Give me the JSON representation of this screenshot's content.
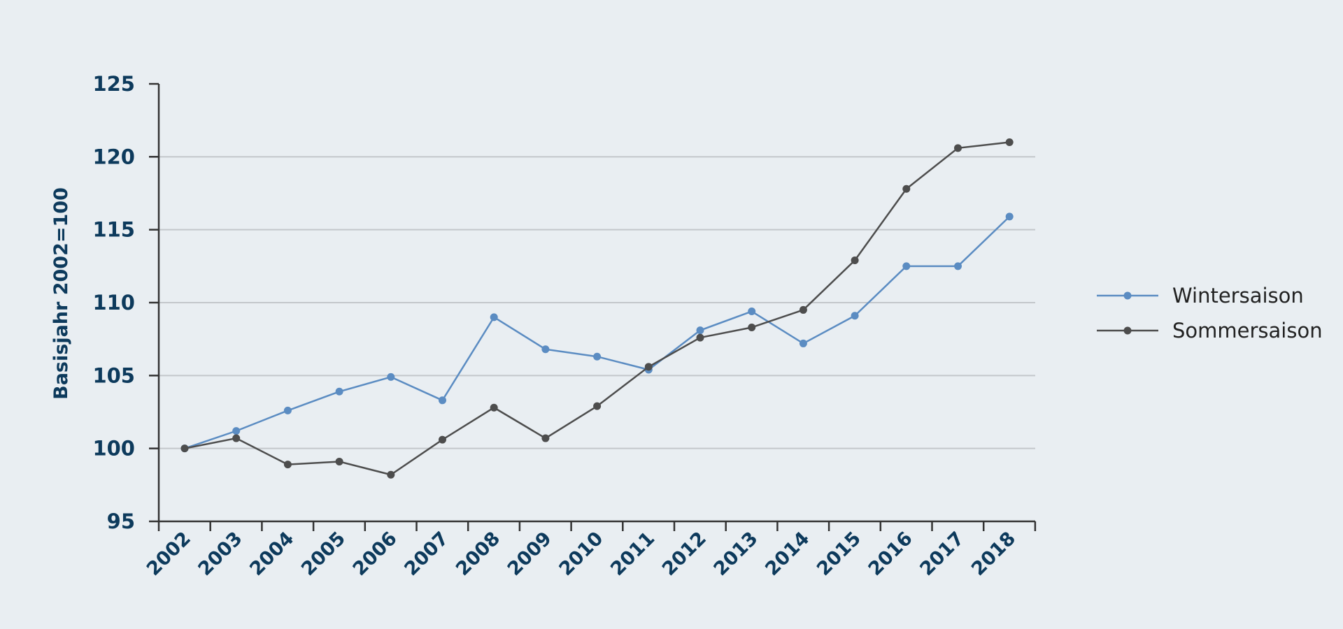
{
  "chart_data": {
    "type": "line",
    "title": "",
    "xlabel": "",
    "ylabel": "Basisjahr 2002=100",
    "x": [
      "2002",
      "2003",
      "2004",
      "2005",
      "2006",
      "2007",
      "2008",
      "2009",
      "2010",
      "2011",
      "2012",
      "2013",
      "2014",
      "2015",
      "2016",
      "2017",
      "2018"
    ],
    "ylim": [
      95,
      125
    ],
    "yticks": [
      "95",
      "100",
      "105",
      "110",
      "115",
      "120",
      "125"
    ],
    "grid": true,
    "legend_position": "right",
    "series": [
      {
        "name": "Wintersaison",
        "color": "#5b8cc2",
        "values": [
          100,
          101.2,
          102.6,
          103.9,
          104.9,
          103.3,
          109.0,
          106.8,
          106.3,
          105.4,
          108.1,
          109.4,
          107.2,
          109.1,
          112.5,
          112.5,
          115.9
        ]
      },
      {
        "name": "Sommersaison",
        "color": "#4d4d4d",
        "values": [
          100,
          100.7,
          98.9,
          99.1,
          98.2,
          100.6,
          102.8,
          100.7,
          102.9,
          105.6,
          107.6,
          108.3,
          109.5,
          112.9,
          117.8,
          120.6,
          121.0
        ]
      }
    ]
  }
}
